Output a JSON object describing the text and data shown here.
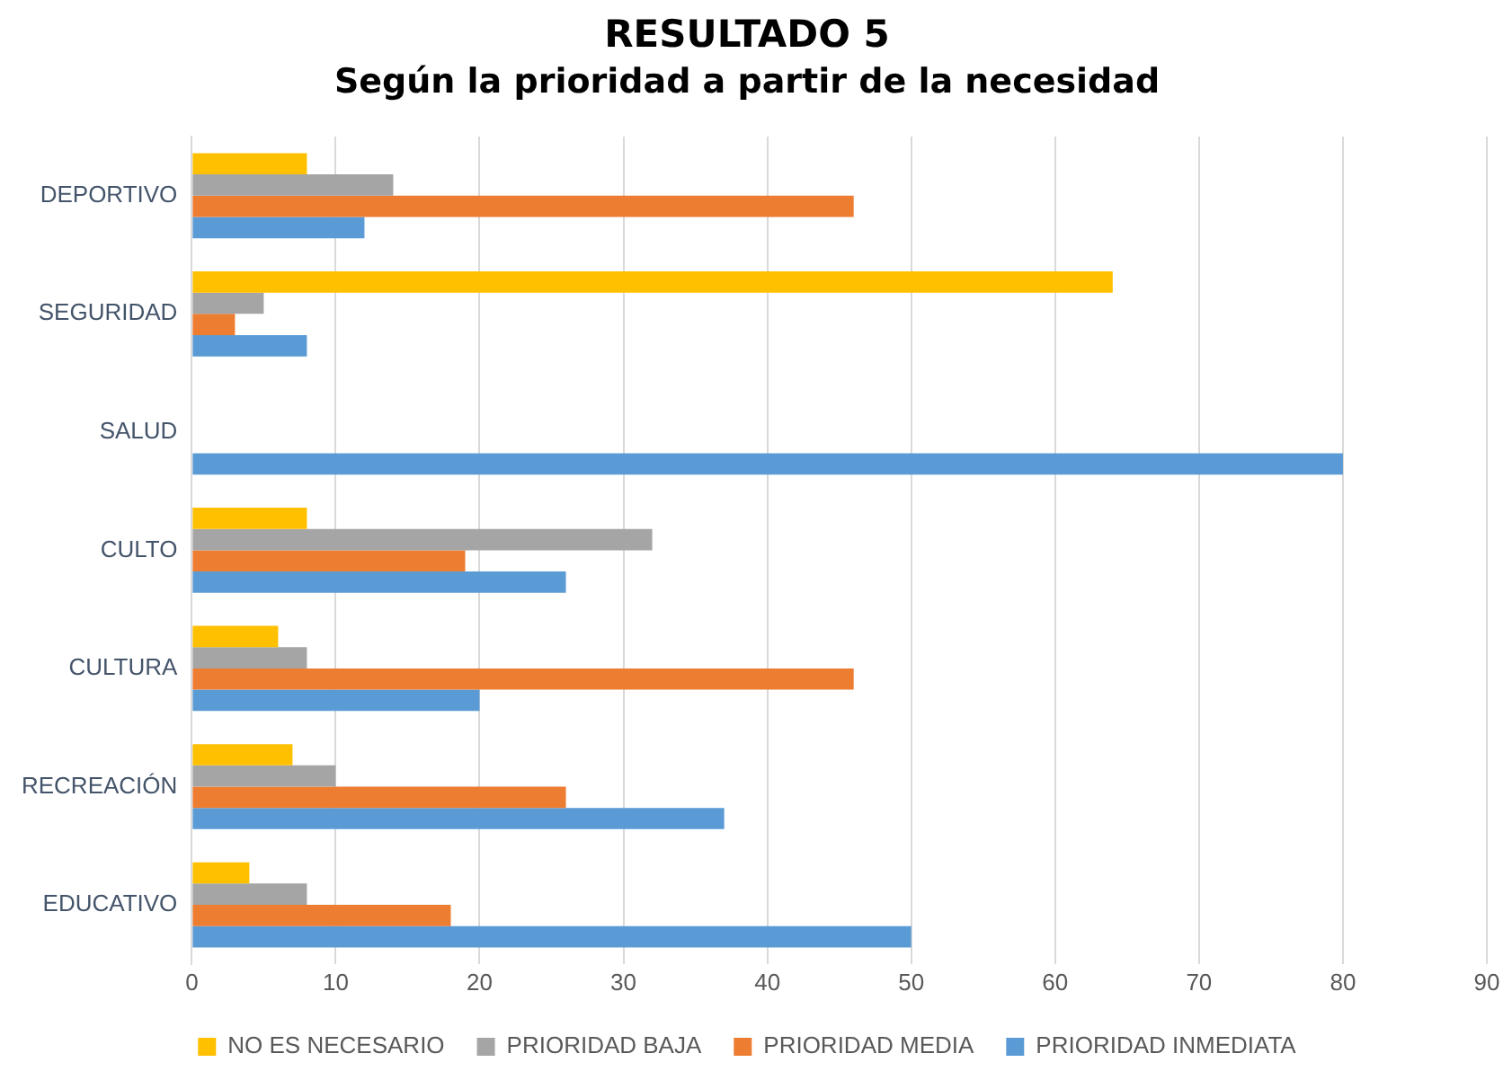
{
  "chart_data": {
    "type": "bar",
    "orientation": "horizontal",
    "title": "RESULTADO 5",
    "subtitle": "Según la prioridad a partir de la necesidad",
    "categories": [
      "DEPORTIVO",
      "SEGURIDAD",
      "SALUD",
      "CULTO",
      "CULTURA",
      "RECREACIÓN",
      "EDUCATIVO"
    ],
    "series": [
      {
        "name": "NO ES NECESARIO",
        "color": "#ffc000",
        "values": [
          8,
          64,
          0,
          8,
          6,
          7,
          4
        ]
      },
      {
        "name": "PRIORIDAD BAJA",
        "color": "#a5a5a5",
        "values": [
          14,
          5,
          0,
          32,
          8,
          10,
          8
        ]
      },
      {
        "name": "PRIORIDAD MEDIA",
        "color": "#ed7d31",
        "values": [
          46,
          3,
          0,
          19,
          46,
          26,
          18
        ]
      },
      {
        "name": "PRIORIDAD INMEDIATA",
        "color": "#5b9bd5",
        "values": [
          12,
          8,
          80,
          26,
          20,
          37,
          50
        ]
      }
    ],
    "xlim": [
      0,
      90
    ],
    "xticks": [
      0,
      10,
      20,
      30,
      40,
      50,
      60,
      70,
      80,
      90
    ],
    "grid": "x",
    "legend": "bottom"
  }
}
